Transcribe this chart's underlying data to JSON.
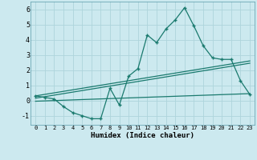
{
  "title": "",
  "xlabel": "Humidex (Indice chaleur)",
  "ylabel": "",
  "bg_color": "#cce9ef",
  "grid_color": "#aed4db",
  "line_color": "#1a7a6e",
  "xlim": [
    -0.5,
    23.5
  ],
  "ylim": [
    -1.6,
    6.5
  ],
  "xticks": [
    0,
    1,
    2,
    3,
    4,
    5,
    6,
    7,
    8,
    9,
    10,
    11,
    12,
    13,
    14,
    15,
    16,
    17,
    18,
    19,
    20,
    21,
    22,
    23
  ],
  "yticks": [
    -1,
    0,
    1,
    2,
    3,
    4,
    5,
    6
  ],
  "main_line_x": [
    0,
    1,
    2,
    3,
    4,
    5,
    6,
    7,
    8,
    9,
    10,
    11,
    12,
    13,
    14,
    15,
    16,
    17,
    18,
    19,
    20,
    21,
    22,
    23
  ],
  "main_line_y": [
    0.3,
    0.2,
    0.1,
    -0.4,
    -0.8,
    -1.0,
    -1.2,
    -1.2,
    0.8,
    -0.3,
    1.6,
    2.1,
    4.3,
    3.8,
    4.7,
    5.3,
    6.1,
    4.9,
    3.6,
    2.8,
    2.7,
    2.7,
    1.3,
    0.4
  ],
  "reg_line1_x": [
    0,
    23
  ],
  "reg_line1_y": [
    0.3,
    2.6
  ],
  "reg_line2_x": [
    0,
    23
  ],
  "reg_line2_y": [
    0.15,
    2.45
  ],
  "flat_line_x": [
    0,
    23
  ],
  "flat_line_y": [
    -0.05,
    0.45
  ]
}
